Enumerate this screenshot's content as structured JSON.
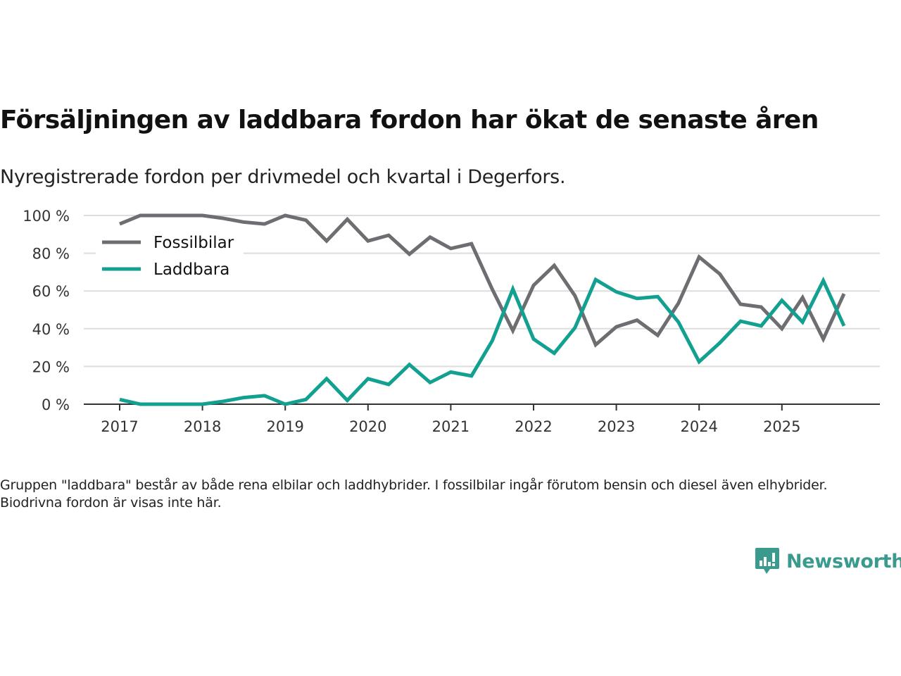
{
  "header": {
    "title": "Försäljningen av laddbara fordon har ökat de senaste åren",
    "subtitle": "Nyregistrerade fordon per drivmedel och kvartal i Degerfors."
  },
  "footer": {
    "note": "Gruppen \"laddbara\" består av både rena elbilar och laddhybrider. I fossilbilar ingår förutom bensin och diesel även elhybrider. Biodrivna fordon är visas inte här.",
    "brand": "Newsworthy",
    "brand_icon": "bar-chart-speech-bubble-icon"
  },
  "colors": {
    "fossil": "#6e6d72",
    "laddbara": "#12a090",
    "grid": "#dddddd",
    "axis": "#333333",
    "brand": "#3b9a8e"
  },
  "chart_data": {
    "type": "line",
    "title": "Försäljningen av laddbara fordon har ökat de senaste åren",
    "subtitle": "Nyregistrerade fordon per drivmedel och kvartal i Degerfors.",
    "xlabel": "",
    "ylabel": "",
    "x_unit": "quarter",
    "x_start": 2017,
    "x_range": [
      2016.55,
      2026.3
    ],
    "ylim": [
      0,
      100
    ],
    "x_ticks": [
      2017,
      2018,
      2019,
      2020,
      2021,
      2022,
      2023,
      2024,
      2025
    ],
    "x_tick_labels": [
      "2017",
      "2018",
      "2019",
      "2020",
      "2021",
      "2022",
      "2023",
      "2024",
      "2025"
    ],
    "y_ticks": [
      0,
      20,
      40,
      60,
      80,
      100
    ],
    "y_tick_labels": [
      "0 %",
      "20 %",
      "40 %",
      "60 %",
      "80 %",
      "100 %"
    ],
    "grid": true,
    "legend_position": "top-left",
    "series": [
      {
        "name": "Fossilbilar",
        "color": "#6e6d72",
        "values": [
          95.5,
          100,
          100,
          100,
          100,
          98.5,
          96.5,
          95.5,
          100,
          97.5,
          86.5,
          98,
          86.5,
          89.5,
          79.5,
          88.5,
          82.5,
          85,
          61,
          39,
          63,
          73.5,
          57.5,
          31.5,
          41,
          44.5,
          36.5,
          53.5,
          78,
          69,
          53,
          51.5,
          40,
          56.5,
          34.5,
          58.5
        ]
      },
      {
        "name": "Laddbara",
        "color": "#12a090",
        "values": [
          2.5,
          0,
          0,
          0,
          0,
          1.5,
          3.5,
          4.5,
          0,
          2.5,
          13.5,
          2,
          13.5,
          10.5,
          21,
          11.5,
          17,
          15,
          33.5,
          61,
          34.5,
          27,
          40.5,
          66,
          59.5,
          56,
          57,
          43.5,
          22.5,
          32.5,
          44,
          41.5,
          55,
          43.5,
          65.5,
          41.5
        ]
      }
    ]
  }
}
